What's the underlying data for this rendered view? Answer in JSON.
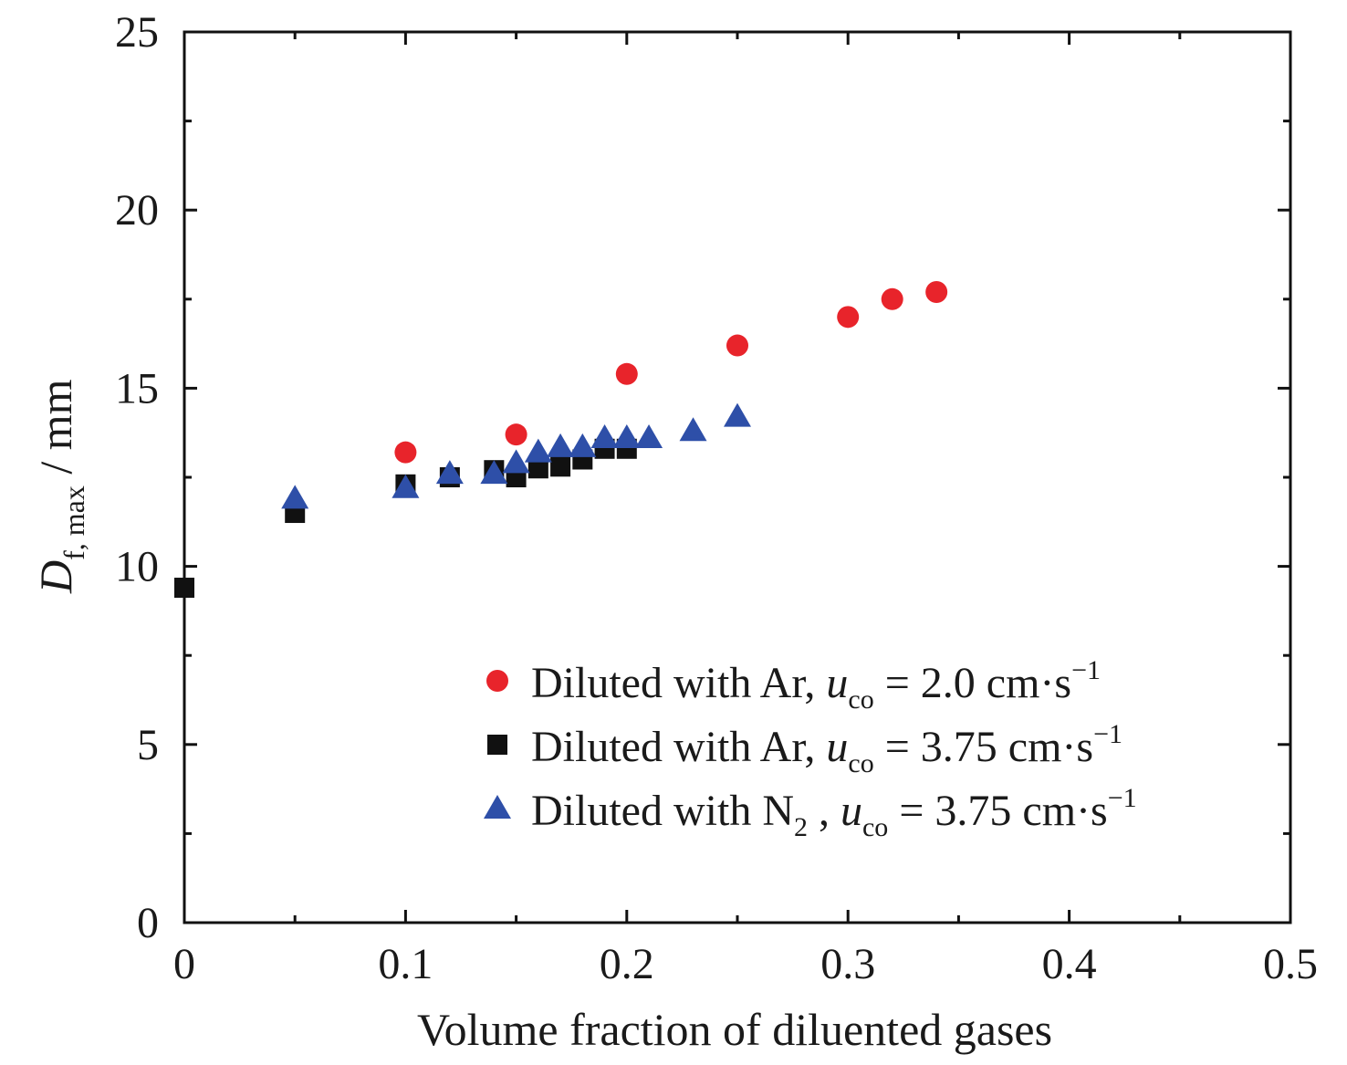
{
  "chart_data": {
    "type": "scatter",
    "title": "",
    "xlabel": "Volume fraction of diluented gases",
    "ylabel": {
      "main": "D",
      "sub": "f, max",
      "unit": " / mm"
    },
    "xlim": [
      0,
      0.5
    ],
    "ylim": [
      0,
      25
    ],
    "x_ticks": [
      "0",
      "0.1",
      "0.2",
      "0.3",
      "0.4",
      "0.5"
    ],
    "x_tick_values": [
      0,
      0.1,
      0.2,
      0.3,
      0.4,
      0.5
    ],
    "y_ticks": [
      "0",
      "5",
      "10",
      "15",
      "20",
      "25"
    ],
    "y_tick_values": [
      0,
      5,
      10,
      15,
      20,
      25
    ],
    "grid": false,
    "legend_position": "bottom-right",
    "series": [
      {
        "name": "Diluted with Ar, u_co = 2.0 cm·s^-1",
        "legend": {
          "pre": "Diluted with Ar, ",
          "var": "u",
          "sub": "co",
          "post": " = 2.0 cm·s",
          "sup": "−1"
        },
        "marker": "circle",
        "color": "#e8242b",
        "x": [
          0.1,
          0.15,
          0.2,
          0.25,
          0.3,
          0.32,
          0.34
        ],
        "y": [
          13.2,
          13.7,
          15.4,
          16.2,
          17.0,
          17.5,
          17.7
        ]
      },
      {
        "name": "Diluted with Ar, u_co = 3.75 cm·s^-1",
        "legend": {
          "pre": "Diluted with Ar, ",
          "var": "u",
          "sub": "co",
          "post": " = 3.75 cm·s",
          "sup": "−1"
        },
        "marker": "square",
        "color": "#111111",
        "x": [
          0.0,
          0.05,
          0.1,
          0.12,
          0.14,
          0.15,
          0.16,
          0.17,
          0.18,
          0.19,
          0.2
        ],
        "y": [
          9.4,
          11.5,
          12.3,
          12.5,
          12.7,
          12.5,
          12.75,
          12.8,
          13.0,
          13.3,
          13.3
        ]
      },
      {
        "name": "Diluted with N2, u_co = 3.75 cm·s^-1",
        "legend": {
          "pre": "Diluted with N",
          "pre_sub": "2",
          "pre2": " , ",
          "var": "u",
          "sub": "co",
          "post": " = 3.75 cm·s",
          "sup": "−1"
        },
        "marker": "triangle",
        "color": "#2e4fa8",
        "x": [
          0.05,
          0.1,
          0.12,
          0.14,
          0.15,
          0.16,
          0.17,
          0.18,
          0.19,
          0.2,
          0.21,
          0.23,
          0.25
        ],
        "y": [
          11.9,
          12.2,
          12.6,
          12.6,
          12.9,
          13.2,
          13.35,
          13.35,
          13.6,
          13.6,
          13.6,
          13.8,
          14.2
        ]
      }
    ]
  }
}
